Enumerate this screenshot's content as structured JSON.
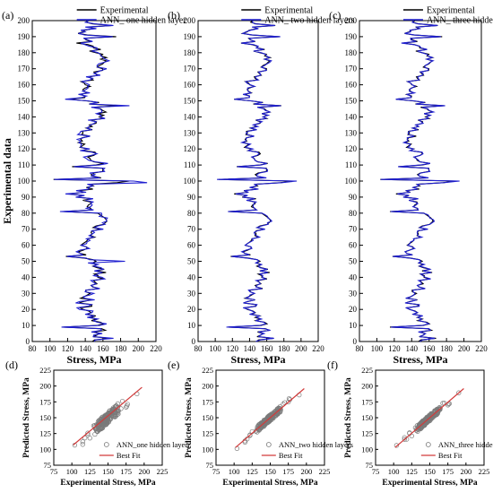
{
  "figure": {
    "series_colors": {
      "experimental": "#000000",
      "ann": "#1f1fd0",
      "scatter": "#7a7a7a",
      "fit": "#d23b3b"
    }
  },
  "chart_data": [
    {
      "panel": "(a)",
      "type": "line",
      "orientation": "horizontal",
      "xlabel": "Stress, MPa",
      "ylabel": "Experimental data",
      "xlim": [
        80,
        220
      ],
      "ylim": [
        0,
        200
      ],
      "xticks": [
        80,
        100,
        120,
        140,
        160,
        180,
        200,
        220
      ],
      "yticks": [
        0,
        10,
        20,
        30,
        40,
        50,
        60,
        70,
        80,
        90,
        100,
        110,
        120,
        130,
        140,
        150,
        160,
        170,
        180,
        190,
        200
      ],
      "legend": [
        "Experimental",
        "ANN_ one hidden layer"
      ],
      "legend_position": "top-right",
      "series": [
        {
          "name": "Experimental",
          "key": "experimental",
          "variant": "exp"
        },
        {
          "name": "ANN_ one hidden layer",
          "key": "ann",
          "variant": "ann1"
        }
      ]
    },
    {
      "panel": "(b)",
      "type": "line",
      "orientation": "horizontal",
      "xlabel": "Stress, MPa",
      "ylabel": "",
      "xlim": [
        80,
        220
      ],
      "ylim": [
        0,
        200
      ],
      "xticks": [
        80,
        100,
        120,
        140,
        160,
        180,
        200,
        220
      ],
      "yticks": [
        0,
        10,
        20,
        30,
        40,
        50,
        60,
        70,
        80,
        90,
        100,
        110,
        120,
        130,
        140,
        150,
        160,
        170,
        180,
        190,
        200
      ],
      "legend": [
        "Experimental",
        "ANN_ two hidden layers"
      ],
      "legend_position": "top-right",
      "series": [
        {
          "name": "Experimental",
          "key": "experimental",
          "variant": "exp"
        },
        {
          "name": "ANN_ two hidden layers",
          "key": "ann",
          "variant": "ann2"
        }
      ]
    },
    {
      "panel": "(c)",
      "type": "line",
      "orientation": "horizontal",
      "xlabel": "Stress, MPa",
      "ylabel": "",
      "xlim": [
        80,
        220
      ],
      "ylim": [
        0,
        200
      ],
      "xticks": [
        80,
        100,
        120,
        140,
        160,
        180,
        200,
        220
      ],
      "yticks": [
        0,
        10,
        20,
        30,
        40,
        50,
        60,
        70,
        80,
        90,
        100,
        110,
        120,
        130,
        140,
        150,
        160,
        170,
        180,
        190,
        200
      ],
      "legend": [
        "Experimental",
        "ANN_ three hidden layers"
      ],
      "legend_position": "top-right",
      "series": [
        {
          "name": "Experimental",
          "key": "experimental",
          "variant": "exp"
        },
        {
          "name": "ANN_ three hidden layers",
          "key": "ann",
          "variant": "ann3"
        }
      ]
    },
    {
      "panel": "(d)",
      "type": "scatter",
      "xlabel": "Experimental Stress, MPa",
      "ylabel": "Predicted Stress, MPa",
      "xlim": [
        75,
        225
      ],
      "ylim": [
        75,
        225
      ],
      "xticks": [
        75,
        100,
        125,
        150,
        175,
        200,
        225
      ],
      "yticks": [
        75,
        100,
        125,
        150,
        175,
        200,
        225
      ],
      "legend": [
        "ANN_one hidden layer",
        "Best Fit"
      ],
      "legend_position": "bottom-right",
      "noise": 9,
      "seed": 11,
      "fit": {
        "x": [
          102,
          197
        ],
        "y": [
          107,
          198
        ]
      }
    },
    {
      "panel": "(e)",
      "type": "scatter",
      "xlabel": "Experimental Stress, MPa",
      "ylabel": "Predicted Stress, MPa",
      "xlim": [
        75,
        225
      ],
      "ylim": [
        75,
        225
      ],
      "xticks": [
        75,
        100,
        125,
        150,
        175,
        200,
        225
      ],
      "yticks": [
        75,
        100,
        125,
        150,
        175,
        200,
        225
      ],
      "legend": [
        "ANN_two hidden layers",
        "Best Fit"
      ],
      "legend_position": "bottom-right",
      "noise": 5,
      "seed": 23,
      "fit": {
        "x": [
          102,
          197
        ],
        "y": [
          103,
          196
        ]
      }
    },
    {
      "panel": "(f)",
      "type": "scatter",
      "xlabel": "Experimental Stress, MPa",
      "ylabel": "Predicted Stress, MPa",
      "xlim": [
        75,
        225
      ],
      "ylim": [
        75,
        225
      ],
      "xticks": [
        75,
        100,
        125,
        150,
        175,
        200,
        225
      ],
      "yticks": [
        75,
        100,
        125,
        150,
        175,
        200,
        225
      ],
      "legend": [
        "ANN_three hidden layers",
        "Best Fit"
      ],
      "legend_position": "bottom-right",
      "noise": 5,
      "seed": 37,
      "fit": {
        "x": [
          102,
          197
        ],
        "y": [
          103,
          196
        ]
      }
    }
  ]
}
